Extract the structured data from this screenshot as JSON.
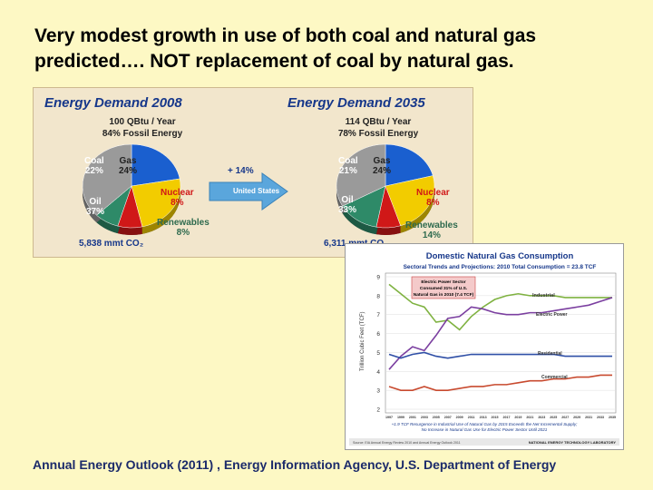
{
  "headline": {
    "line1": "Very modest growth in use of both coal and natural gas",
    "line2": "predicted…. NOT replacement of coal by natural gas."
  },
  "footer": "Annual Energy Outlook (2011) , Energy Information Agency, U.S. Department of Energy",
  "chart_data": [
    {
      "type": "pie",
      "title": "Energy Demand 2008",
      "subtitle1": "100 QBtu / Year",
      "subtitle2": "84% Fossil Energy",
      "slices": [
        {
          "name": "Coal",
          "value": 22,
          "label": "22%",
          "color": "#1a5fcf"
        },
        {
          "name": "Gas",
          "value": 24,
          "label": "24%",
          "color": "#f2cc00"
        },
        {
          "name": "Nuclear",
          "value": 8,
          "label": "8%",
          "color": "#d01818"
        },
        {
          "name": "Renewables",
          "value": 8,
          "label": "8%",
          "color": "#2e8a68"
        },
        {
          "name": "Oil",
          "value": 37,
          "label": "37%",
          "color": "#9a9a9a"
        }
      ],
      "co2": "5,838 mmt CO₂"
    },
    {
      "type": "pie",
      "title": "Energy Demand 2035",
      "subtitle1": "114 QBtu / Year",
      "subtitle2": "78% Fossil Energy",
      "slices": [
        {
          "name": "Coal",
          "value": 21,
          "label": "21%",
          "color": "#1a5fcf"
        },
        {
          "name": "Gas",
          "value": 24,
          "label": "24%",
          "color": "#f2cc00"
        },
        {
          "name": "Nuclear",
          "value": 8,
          "label": "8%",
          "color": "#d01818"
        },
        {
          "name": "Renewables",
          "value": 14,
          "label": "14%",
          "color": "#2e8a68"
        },
        {
          "name": "Oil",
          "value": 33,
          "label": "33%",
          "color": "#9a9a9a"
        }
      ],
      "co2": "6,311 mmt CO₂"
    },
    {
      "type": "line",
      "title": "Domestic Natural Gas Consumption",
      "subtitle": "Sectoral Trends and Projections: 2010 Total Consumption = 23.8 TCF",
      "ylabel": "Trillion Cubic Feet (TCF)",
      "ylim": [
        2,
        9
      ],
      "yticks": [
        "2",
        "3",
        "4",
        "5",
        "6",
        "7",
        "8",
        "9"
      ],
      "xlim": [
        1997,
        2035
      ],
      "xticks": [
        "1997",
        "1999",
        "2001",
        "2003",
        "2005",
        "2007",
        "2009",
        "2011",
        "2013",
        "2015",
        "2017",
        "2019",
        "2021",
        "2023",
        "2025",
        "2027",
        "2029",
        "2031",
        "2033",
        "2035"
      ],
      "series": [
        {
          "name": "Industrial",
          "color": "#7fb241",
          "x": [
            1997,
            1999,
            2001,
            2003,
            2005,
            2007,
            2009,
            2011,
            2013,
            2015,
            2017,
            2019,
            2021,
            2023,
            2025,
            2027,
            2029,
            2031,
            2033,
            2035
          ],
          "y": [
            8.6,
            8.1,
            7.6,
            7.4,
            6.6,
            6.7,
            6.2,
            6.9,
            7.4,
            7.8,
            8.0,
            8.1,
            8.0,
            8.0,
            8.0,
            7.9,
            7.9,
            7.9,
            7.9,
            7.9
          ]
        },
        {
          "name": "Electric Power",
          "color": "#7b3fa0",
          "x": [
            1997,
            1999,
            2001,
            2003,
            2005,
            2007,
            2009,
            2011,
            2013,
            2015,
            2017,
            2019,
            2021,
            2023,
            2025,
            2027,
            2029,
            2031,
            2033,
            2035
          ],
          "y": [
            4.1,
            4.8,
            5.3,
            5.1,
            5.9,
            6.8,
            6.9,
            7.4,
            7.3,
            7.1,
            7.0,
            7.0,
            7.1,
            7.1,
            7.2,
            7.3,
            7.4,
            7.5,
            7.7,
            7.9
          ]
        },
        {
          "name": "Residential",
          "color": "#2f4fa6",
          "x": [
            1997,
            1999,
            2001,
            2003,
            2005,
            2007,
            2009,
            2011,
            2013,
            2015,
            2017,
            2019,
            2021,
            2023,
            2025,
            2027,
            2029,
            2031,
            2033,
            2035
          ],
          "y": [
            4.9,
            4.7,
            4.9,
            5.0,
            4.8,
            4.7,
            4.8,
            4.9,
            4.9,
            4.9,
            4.9,
            4.9,
            4.9,
            4.9,
            4.9,
            4.8,
            4.8,
            4.8,
            4.8,
            4.8
          ]
        },
        {
          "name": "Commercial",
          "color": "#c84a2f",
          "x": [
            1997,
            1999,
            2001,
            2003,
            2005,
            2007,
            2009,
            2011,
            2013,
            2015,
            2017,
            2019,
            2021,
            2023,
            2025,
            2027,
            2029,
            2031,
            2033,
            2035
          ],
          "y": [
            3.2,
            3.0,
            3.0,
            3.2,
            3.0,
            3.0,
            3.1,
            3.2,
            3.2,
            3.3,
            3.3,
            3.4,
            3.5,
            3.5,
            3.6,
            3.6,
            3.7,
            3.7,
            3.8,
            3.8
          ]
        }
      ],
      "annotations": [
        {
          "text": "Electric Power Sector",
          "line": 1
        },
        {
          "text": "Consumed 31% of U.S.",
          "line": 2
        },
        {
          "text": "Natural Gas in 2010 (7.4 TCF)",
          "line": 3
        }
      ],
      "caption_line1": "+1.9 TCF Resurgence in Industrial Use of Natural Gas by 2015 Exceeds the Net Incremental Supply;",
      "caption_line2": "No Increase in Natural Gas Use for Electric Power Sector Until 2021",
      "source": "Source: EIA Annual Energy Review 2010 and Annual Energy Outlook 2011",
      "lab": "NATIONAL ENERGY TECHNOLOGY LABORATORY"
    }
  ],
  "arrow": {
    "change": "+ 14%",
    "region": "United States"
  }
}
